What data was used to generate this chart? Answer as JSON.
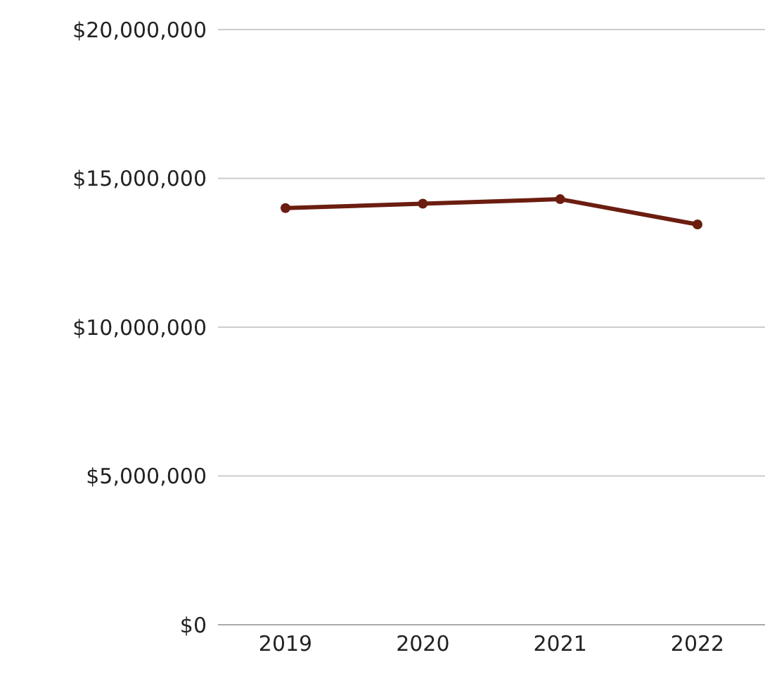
{
  "chart_data": {
    "type": "line",
    "categories": [
      "2019",
      "2020",
      "2021",
      "2022"
    ],
    "series": [
      {
        "color": "#6b1d10",
        "values": [
          14000000,
          14150000,
          14300000,
          13450000
        ]
      }
    ],
    "ylim": [
      0,
      20000000
    ],
    "yticks": [
      {
        "value": 0,
        "label": "$0"
      },
      {
        "value": 5000000,
        "label": "$5,000,000"
      },
      {
        "value": 10000000,
        "label": "$10,000,000"
      },
      {
        "value": 15000000,
        "label": "$15,000,000"
      },
      {
        "value": 20000000,
        "label": "$20,000,000"
      }
    ],
    "grid": "y",
    "marker": "circle",
    "line_style": "solid"
  }
}
